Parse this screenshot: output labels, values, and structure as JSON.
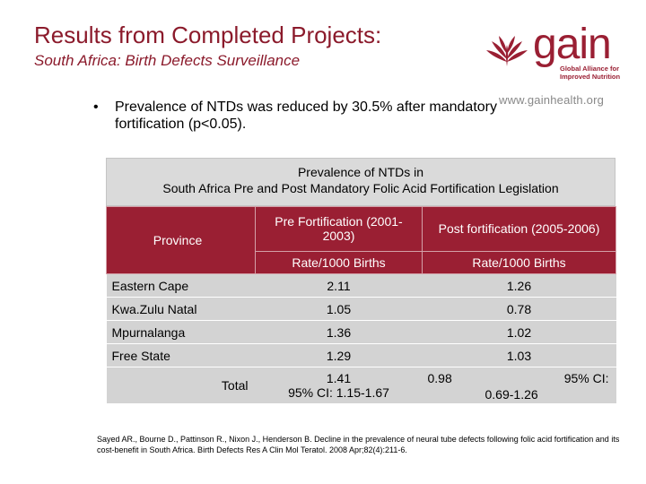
{
  "slide": {
    "title": "Results from Completed Projects:",
    "subtitle": "South Africa: Birth Defects Surveillance"
  },
  "logo": {
    "brand": "gain",
    "tagline": "Global Alliance for Improved Nutrition",
    "url": "www.gainhealth.org",
    "color": "#9a1f33"
  },
  "bullet": {
    "symbol": "•",
    "text": "Prevalence of NTDs was reduced by 30.5% after mandatory fortification (p<0.05)."
  },
  "table": {
    "caption_line1": "Prevalence of NTDs in",
    "caption_line2": "South Africa Pre and Post Mandatory Folic Acid Fortification Legislation",
    "header": {
      "province": "Province",
      "pre": "Pre Fortification (2001-2003)",
      "post": "Post fortification (2005-2006)",
      "pre_unit": "Rate/1000 Births",
      "post_unit": "Rate/1000 Births"
    },
    "rows": [
      {
        "province": "Eastern Cape",
        "pre": "2.11",
        "post": "1.26"
      },
      {
        "province": "Kwa.Zulu Natal",
        "pre": "1.05",
        "post": "0.78"
      },
      {
        "province": "Mpurnalanga",
        "pre": "1.36",
        "post": "1.02"
      },
      {
        "province": "Free State",
        "pre": "1.29",
        "post": "1.03"
      }
    ],
    "total": {
      "label": "Total",
      "pre_value": "1.41",
      "pre_ci": "95% CI: 1.15-1.67",
      "post_value": "0.98",
      "post_ci_label": "95% CI:",
      "post_ci": "0.69-1.26"
    },
    "colors": {
      "header_bg": "#9a1f33",
      "row_bg": "#d3d3d3"
    }
  },
  "reference": "Sayed AR., Bourne D., Pattinson R., Nixon J., Henderson B. Decline in the prevalence of neural tube defects following folic acid fortification and its cost-benefit in South Africa. Birth Defects Res A Clin Mol Teratol. 2008 Apr;82(4):211-6."
}
